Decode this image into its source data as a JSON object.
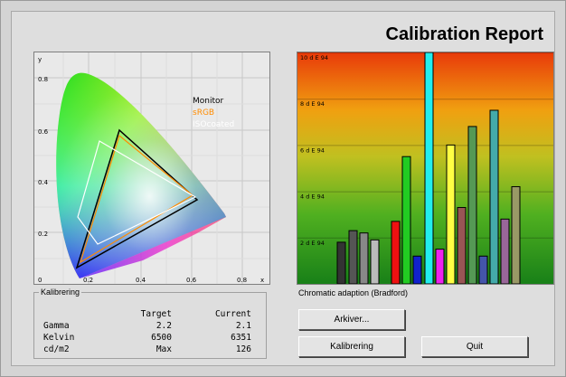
{
  "window": {
    "title": "Calibration Report"
  },
  "cie": {
    "axis_x": "x",
    "axis_y": "y",
    "y_ticks": [
      "0.8",
      "0.6",
      "0.4",
      "0.2",
      "0"
    ],
    "x_ticks": [
      "0.2",
      "0.4",
      "0.6",
      "0.8"
    ],
    "legend": [
      {
        "label": "Monitor",
        "color": "#000000"
      },
      {
        "label": "sRGB",
        "color": "#ff8c00"
      },
      {
        "label": "ISOcoated",
        "color": "#ffffff"
      }
    ]
  },
  "chart_data": {
    "type": "bar",
    "ylabel_ticks": [
      "10 d E 94",
      "8 d E 94",
      "6 d E 94",
      "4 d E 94",
      "2 d E 94"
    ],
    "ylim": [
      0,
      10
    ],
    "bars": [
      {
        "value": 1.8,
        "color": "#333333"
      },
      {
        "value": 2.3,
        "color": "#555555"
      },
      {
        "value": 2.2,
        "color": "#888888"
      },
      {
        "value": 1.9,
        "color": "#bbbbbb"
      },
      {
        "value": 2.7,
        "color": "#ee1111"
      },
      {
        "value": 5.5,
        "color": "#22cc22"
      },
      {
        "value": 1.2,
        "color": "#1122cc"
      },
      {
        "value": 10.0,
        "color": "#22eeee"
      },
      {
        "value": 1.5,
        "color": "#ee22ee"
      },
      {
        "value": 6.0,
        "color": "#ffff44"
      },
      {
        "value": 3.3,
        "color": "#995555"
      },
      {
        "value": 6.8,
        "color": "#559955"
      },
      {
        "value": 1.2,
        "color": "#4455aa"
      },
      {
        "value": 7.5,
        "color": "#44aaaa"
      },
      {
        "value": 2.8,
        "color": "#996699"
      },
      {
        "value": 4.2,
        "color": "#999966"
      }
    ]
  },
  "caption": "Chromatic adaption (Bradford)",
  "kalibrering": {
    "legend": "Kalibrering",
    "headers": [
      "",
      "Target",
      "Current"
    ],
    "rows": [
      [
        "Gamma",
        "2.2",
        "2.1"
      ],
      [
        "Kelvin",
        "6500",
        "6351"
      ],
      [
        "cd/m2",
        "Max",
        "126"
      ]
    ]
  },
  "buttons": {
    "arkiver": "Arkiver...",
    "kalibrering": "Kalibrering",
    "quit": "Quit"
  }
}
